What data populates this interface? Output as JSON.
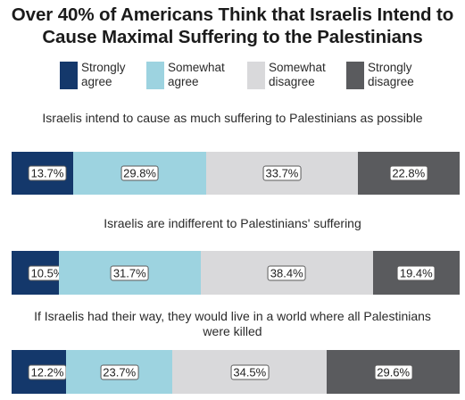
{
  "title": "Over 40% of Americans Think that Israelis Intend to Cause Maximal Suffering to the Palestinians",
  "legend": [
    {
      "label": "Strongly agree",
      "color": "#14386b"
    },
    {
      "label": "Somewhat agree",
      "color": "#9dd3e0"
    },
    {
      "label": "Somewhat disagree",
      "color": "#d9d9db"
    },
    {
      "label": "Strongly disagree",
      "color": "#5a5b5e"
    }
  ],
  "chart_data": {
    "type": "bar",
    "orientation": "horizontal-stacked-100",
    "title": "Over 40% of Americans Think that Israelis Intend to Cause Maximal Suffering to the Palestinians",
    "legend_position": "top",
    "series_names": [
      "Strongly agree",
      "Somewhat agree",
      "Somewhat disagree",
      "Strongly disagree"
    ],
    "units": "%",
    "rows": [
      {
        "question": "Israelis intend to cause as much suffering to Palestinians as possible",
        "values": [
          13.7,
          29.8,
          33.7,
          22.8
        ],
        "labels": [
          "13.7%",
          "29.8%",
          "33.7%",
          "22.8%"
        ]
      },
      {
        "question": "Israelis are indifferent to Palestinians' suffering",
        "values": [
          10.5,
          31.7,
          38.4,
          19.4
        ],
        "labels": [
          "10.5%",
          "31.7%",
          "38.4%",
          "19.4%"
        ]
      },
      {
        "question": "If Israelis had their way, they would live in a world where all Palestinians were killed",
        "values": [
          12.2,
          23.7,
          34.5,
          29.6
        ],
        "labels": [
          "12.2%",
          "23.7%",
          "34.5%",
          "29.6%"
        ]
      }
    ]
  }
}
